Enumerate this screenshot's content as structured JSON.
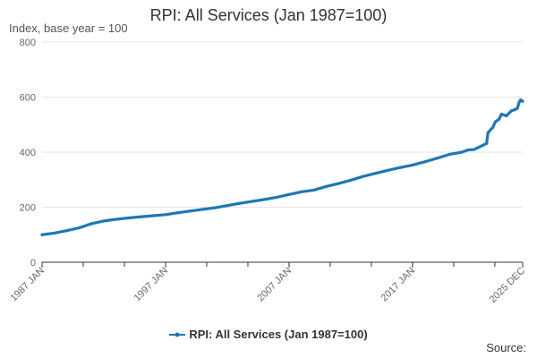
{
  "chart_data": {
    "type": "line",
    "title": "RPI: All Services (Jan 1987=100)",
    "ylabel": "Index, base year = 100",
    "xlabel": "",
    "ylim": [
      0,
      800
    ],
    "y_ticks": [
      0,
      200,
      400,
      600,
      800
    ],
    "x_range": [
      1987.0,
      2025.917
    ],
    "x_ticks": [
      {
        "label": "1987 JAN",
        "x": 1987.0
      },
      {
        "label": "1997 JAN",
        "x": 1997.0
      },
      {
        "label": "2007 JAN",
        "x": 2007.0
      },
      {
        "label": "2017 JAN",
        "x": 2017.0
      },
      {
        "label": "2025 DEC",
        "x": 2025.917
      }
    ],
    "color": "#1f77b4",
    "legend_position": "bottom-center",
    "series": [
      {
        "name": "RPI: All Services (Jan 1987=100)",
        "points": [
          [
            1987.0,
            100
          ],
          [
            1988.0,
            106
          ],
          [
            1989.0,
            115
          ],
          [
            1990.0,
            125
          ],
          [
            1991.0,
            140
          ],
          [
            1992.0,
            150
          ],
          [
            1993.0,
            156
          ],
          [
            1994.0,
            161
          ],
          [
            1995.0,
            165
          ],
          [
            1996.0,
            169
          ],
          [
            1997.0,
            173
          ],
          [
            1998.0,
            180
          ],
          [
            1999.0,
            186
          ],
          [
            2000.0,
            192
          ],
          [
            2001.0,
            198
          ],
          [
            2002.0,
            206
          ],
          [
            2003.0,
            214
          ],
          [
            2004.0,
            221
          ],
          [
            2005.0,
            228
          ],
          [
            2006.0,
            236
          ],
          [
            2007.0,
            246
          ],
          [
            2008.0,
            256
          ],
          [
            2009.0,
            262
          ],
          [
            2010.0,
            275
          ],
          [
            2011.0,
            286
          ],
          [
            2012.0,
            298
          ],
          [
            2013.0,
            312
          ],
          [
            2014.0,
            323
          ],
          [
            2015.0,
            334
          ],
          [
            2016.0,
            344
          ],
          [
            2017.0,
            353
          ],
          [
            2018.0,
            365
          ],
          [
            2019.0,
            378
          ],
          [
            2020.0,
            392
          ],
          [
            2021.0,
            400
          ],
          [
            2021.5,
            408
          ],
          [
            2022.0,
            410
          ],
          [
            2022.7,
            425
          ],
          [
            2023.0,
            432
          ],
          [
            2023.1,
            470
          ],
          [
            2023.5,
            490
          ],
          [
            2023.7,
            510
          ],
          [
            2024.0,
            520
          ],
          [
            2024.2,
            538
          ],
          [
            2024.6,
            532
          ],
          [
            2025.0,
            550
          ],
          [
            2025.3,
            555
          ],
          [
            2025.5,
            560
          ],
          [
            2025.6,
            578
          ],
          [
            2025.75,
            590
          ],
          [
            2025.917,
            585
          ]
        ]
      }
    ],
    "source": "Source:"
  }
}
